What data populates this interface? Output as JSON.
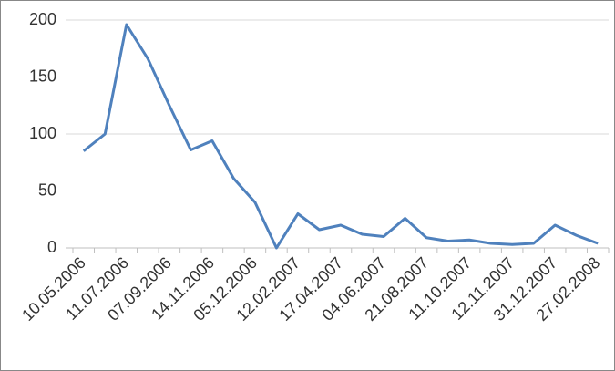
{
  "chart_data": {
    "type": "line",
    "categories": [
      "10.05.2006",
      null,
      "11.07.2006",
      null,
      "07.09.2006",
      null,
      "14.11.2006",
      null,
      "05.12.2006",
      null,
      "12.02.2007",
      null,
      "17.04.2007",
      null,
      "04.06.2007",
      null,
      "21.08.2007",
      null,
      "11.10.2007",
      null,
      "12.11.2007",
      null,
      "31.12.2007",
      null,
      "27.02.2008"
    ],
    "series": [
      {
        "color": "#4f81bd",
        "values": [
          85,
          100,
          196,
          166,
          125,
          86,
          94,
          61,
          40,
          0,
          30,
          16,
          20,
          12,
          10,
          26,
          9,
          6,
          7,
          4,
          3,
          4,
          20,
          11,
          4
        ]
      }
    ],
    "ylim": [
      0,
      200
    ],
    "yticks": [
      0,
      50,
      100,
      150,
      200
    ],
    "grid": true
  }
}
